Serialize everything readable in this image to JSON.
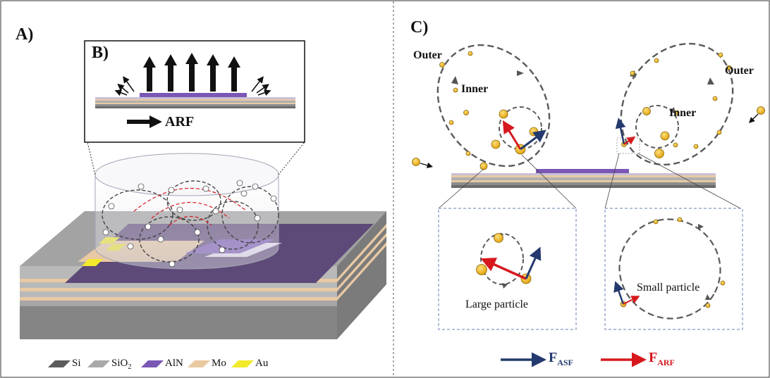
{
  "panels": {
    "a": {
      "letter": "A)"
    },
    "b": {
      "letter": "B)",
      "arrow_label": "ARF"
    },
    "c": {
      "letter": "C)",
      "outer_left": "Outer",
      "outer_right": "Outer",
      "inner_left": "Inner",
      "inner_right": "Inner",
      "zoom_left_label": "Large particle",
      "zoom_right_label": "Small particle"
    }
  },
  "legend": [
    {
      "symbol": "Si",
      "sub": "",
      "color": "#5c5c5c"
    },
    {
      "symbol": "SiO",
      "sub": "2",
      "color": "#a9a9a9"
    },
    {
      "symbol": "AlN",
      "sub": "",
      "color": "#7a57b5"
    },
    {
      "symbol": "Mo",
      "sub": "",
      "color": "#e9c9a0"
    },
    {
      "symbol": "Au",
      "sub": "",
      "color": "#f2ea2a"
    }
  ],
  "forces": [
    {
      "symbol": "F",
      "sub": "ASF",
      "color": "#243a6e"
    },
    {
      "symbol": "F",
      "sub": "ARF",
      "color": "#d6181d"
    }
  ]
}
